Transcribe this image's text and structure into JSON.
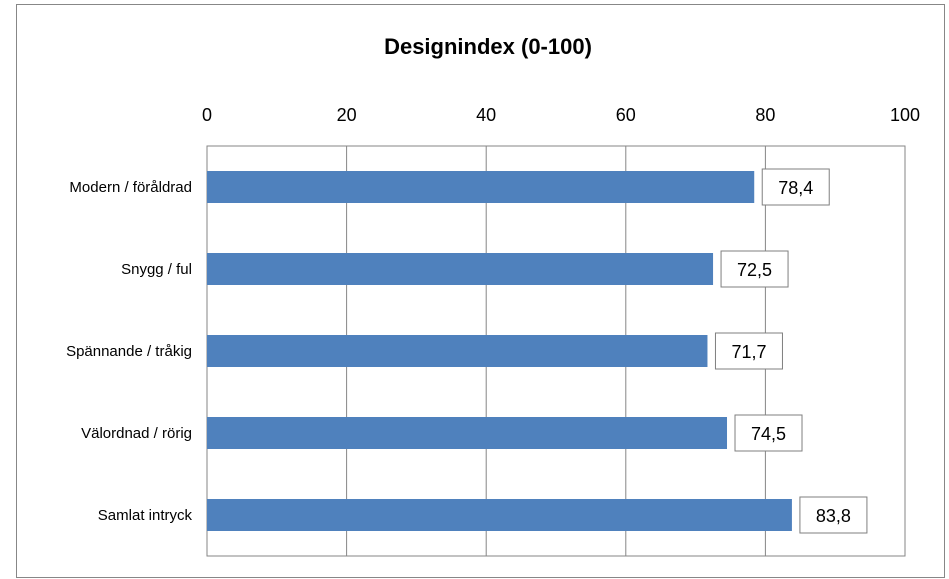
{
  "chart_data": {
    "type": "bar",
    "orientation": "horizontal",
    "title": "Designindex (0-100)",
    "xlabel": "",
    "ylabel": "",
    "xlim": [
      0,
      100
    ],
    "ticks": [
      "0",
      "20",
      "40",
      "60",
      "80",
      "100"
    ],
    "tick_values": [
      0,
      20,
      40,
      60,
      80,
      100
    ],
    "categories": [
      "Modern / föråldrad",
      "Snygg / ful",
      "Spännande / tråkig",
      "Välordnad / rörig",
      "Samlat intryck"
    ],
    "values": [
      78.4,
      72.5,
      71.7,
      74.5,
      83.8
    ],
    "value_labels": [
      "78,4",
      "72,5",
      "71,7",
      "74,5",
      "83,8"
    ],
    "bar_color": "#4F81BD",
    "grid": true,
    "legend": false
  }
}
